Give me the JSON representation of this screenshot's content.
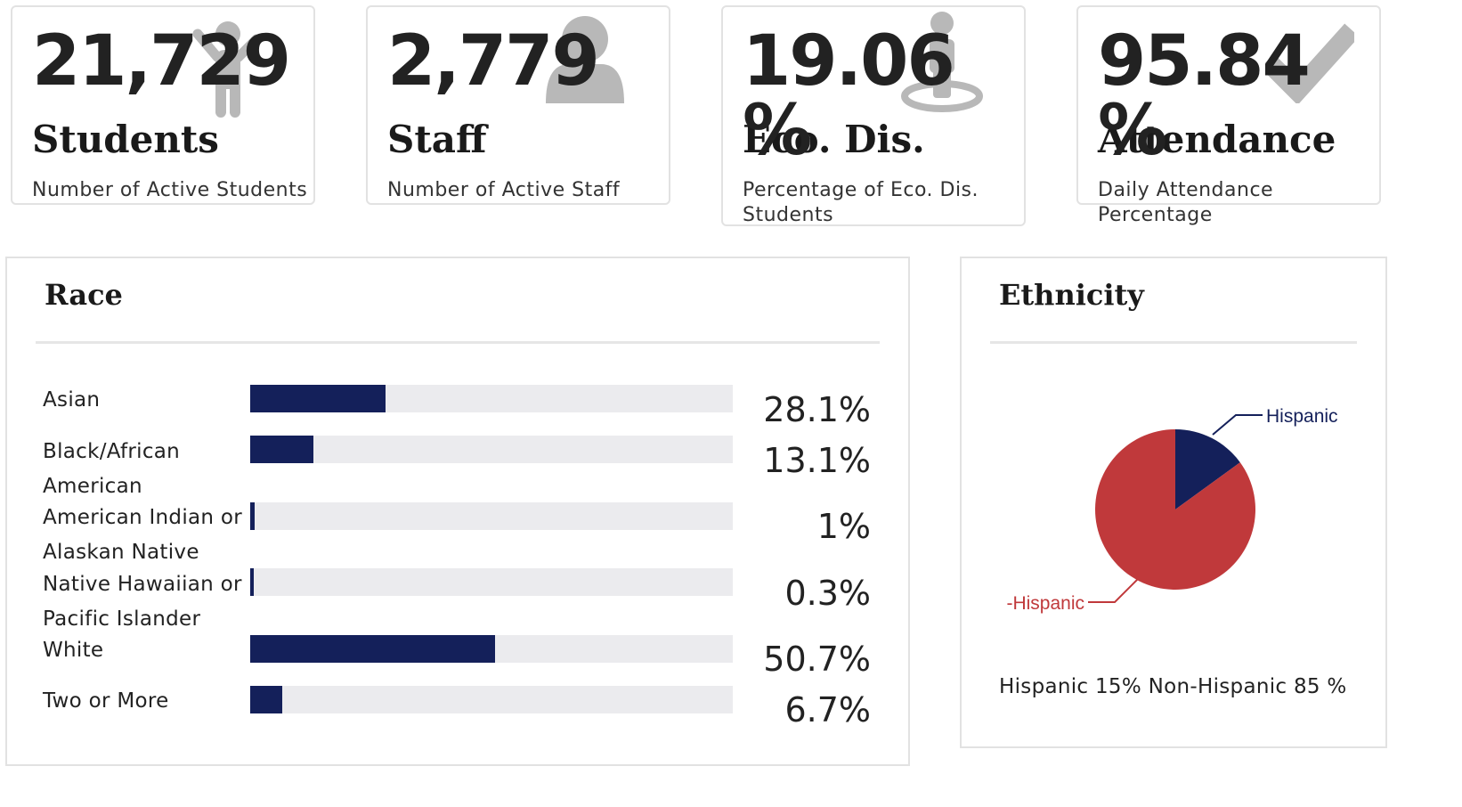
{
  "stats": [
    {
      "value": "21,729",
      "title": "Students",
      "desc": "Number of Active Students",
      "icon": "person-arms-raised-icon"
    },
    {
      "value": "2,779",
      "title": "Staff",
      "desc": "Number of Active Staff",
      "icon": "person-icon"
    },
    {
      "value": "19.06 %",
      "title": "Eco. Dis.",
      "desc": "Percentage of Eco. Dis. Students",
      "icon": "person-location-icon"
    },
    {
      "value": "95.84 %",
      "title": "Attendance",
      "desc": "Daily Attendance Percentage",
      "icon": "checkmark-icon"
    }
  ],
  "race": {
    "title": "Race",
    "items": [
      {
        "label": "Asian",
        "pct_label": "28.1%",
        "value": 28.1
      },
      {
        "label": "Black/African American",
        "pct_label": "13.1%",
        "value": 13.1
      },
      {
        "label": "American Indian or Alaskan Native",
        "pct_label": "1%",
        "value": 1
      },
      {
        "label": "Native Hawaiian or Pacific Islander",
        "pct_label": "0.3%",
        "value": 0.3
      },
      {
        "label": "White",
        "pct_label": "50.7%",
        "value": 50.7
      },
      {
        "label": "Two or More",
        "pct_label": "6.7%",
        "value": 6.7
      }
    ]
  },
  "ethnicity": {
    "title": "Ethnicity",
    "summary": "Hispanic 15% Non-Hispanic 85 %",
    "slices": [
      {
        "label": "Hispanic",
        "value": 15,
        "color": "#14205a"
      },
      {
        "label": "-Hispanic",
        "value": 85,
        "color": "#c0393b"
      }
    ]
  },
  "colors": {
    "bar": "#14205a",
    "track": "#ebebee",
    "icon": "#b8b8b8"
  }
}
